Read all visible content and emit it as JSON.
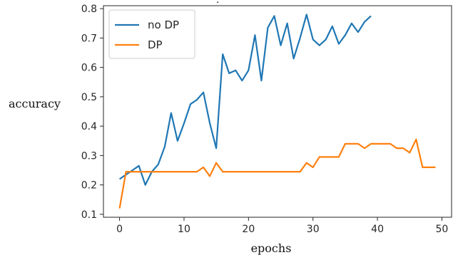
{
  "chart_data": {
    "type": "line",
    "title": "",
    "xlabel": "epochs",
    "ylabel": "accuracy",
    "xlim": [
      -2.5,
      51.5
    ],
    "ylim": [
      0.09,
      0.81
    ],
    "xticks": [
      0,
      10,
      20,
      30,
      40,
      50
    ],
    "yticks": [
      0.1,
      0.2,
      0.3,
      0.4,
      0.5,
      0.6,
      0.7,
      0.8
    ],
    "grid": false,
    "legend_position": "top-left",
    "series": [
      {
        "name": "no DP",
        "color": "#1f77b4",
        "x": [
          0,
          1,
          2,
          3,
          4,
          5,
          6,
          7,
          8,
          9,
          10,
          11,
          12,
          13,
          14,
          15,
          16,
          17,
          18,
          19,
          20,
          21,
          22,
          23,
          24,
          25,
          26,
          27,
          28,
          29,
          30,
          31,
          32,
          33,
          34,
          35,
          36,
          37,
          38,
          39
        ],
        "y": [
          0.22,
          0.235,
          0.25,
          0.265,
          0.2,
          0.245,
          0.27,
          0.33,
          0.445,
          0.35,
          0.41,
          0.475,
          0.49,
          0.515,
          0.41,
          0.325,
          0.645,
          0.58,
          0.59,
          0.555,
          0.59,
          0.71,
          0.555,
          0.735,
          0.775,
          0.675,
          0.75,
          0.63,
          0.7,
          0.78,
          0.695,
          0.675,
          0.695,
          0.74,
          0.68,
          0.71,
          0.75,
          0.72,
          0.755,
          0.775
        ]
      },
      {
        "name": "DP",
        "color": "#ff7f0e",
        "x": [
          0,
          1,
          2,
          3,
          4,
          5,
          6,
          7,
          8,
          9,
          10,
          11,
          12,
          13,
          14,
          15,
          16,
          17,
          18,
          19,
          20,
          21,
          22,
          23,
          24,
          25,
          26,
          27,
          28,
          29,
          30,
          31,
          32,
          33,
          34,
          35,
          36,
          37,
          38,
          39,
          40,
          41,
          42,
          43,
          44,
          45,
          46,
          47,
          48,
          49
        ],
        "y": [
          0.12,
          0.245,
          0.245,
          0.245,
          0.245,
          0.245,
          0.245,
          0.245,
          0.245,
          0.245,
          0.245,
          0.245,
          0.245,
          0.26,
          0.23,
          0.275,
          0.245,
          0.245,
          0.245,
          0.245,
          0.245,
          0.245,
          0.245,
          0.245,
          0.245,
          0.245,
          0.245,
          0.245,
          0.245,
          0.275,
          0.26,
          0.295,
          0.295,
          0.295,
          0.295,
          0.34,
          0.34,
          0.34,
          0.325,
          0.34,
          0.34,
          0.34,
          0.34,
          0.325,
          0.325,
          0.31,
          0.355,
          0.26,
          0.26,
          0.26
        ]
      }
    ]
  }
}
